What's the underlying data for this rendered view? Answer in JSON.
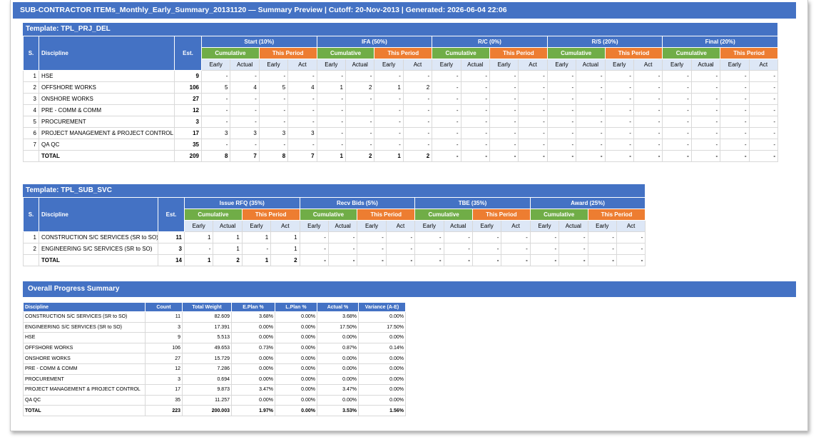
{
  "title": "SUB-CONTRACTOR ITEMs_Monthly_Early_Summary_20131120 — Summary Preview | Cutoff: 20-Nov-2013 | Generated: 2026-06-04 22:06",
  "common": {
    "s_label": "S.",
    "discipline_label": "Discipline",
    "est_label": "Est.",
    "cumulative_label": "Cumulative",
    "this_period_label": "This Period",
    "sub_headers": [
      "Early",
      "Actual",
      "Early",
      "Act"
    ],
    "total_label": "TOTAL"
  },
  "templates": [
    {
      "title": "Template: TPL_PRJ_DEL",
      "milestones": [
        "Start (10%)",
        "IFA (50%)",
        "R/C (0%)",
        "R/S (20%)",
        "Final (20%)"
      ],
      "rows": [
        {
          "s": "1",
          "discipline": "HSE",
          "est": "9",
          "values": [
            "-",
            "-",
            "-",
            "-",
            "-",
            "-",
            "-",
            "-",
            "-",
            "-",
            "-",
            "-",
            "-",
            "-",
            "-",
            "-",
            "-",
            "-",
            "-",
            "-"
          ]
        },
        {
          "s": "2",
          "discipline": "OFFSHORE WORKS",
          "est": "106",
          "values": [
            "5",
            "4",
            "5",
            "4",
            "1",
            "2",
            "1",
            "2",
            "-",
            "-",
            "-",
            "-",
            "-",
            "-",
            "-",
            "-",
            "-",
            "-",
            "-",
            "-"
          ]
        },
        {
          "s": "3",
          "discipline": "ONSHORE WORKS",
          "est": "27",
          "values": [
            "-",
            "-",
            "-",
            "-",
            "-",
            "-",
            "-",
            "-",
            "-",
            "-",
            "-",
            "-",
            "-",
            "-",
            "-",
            "-",
            "-",
            "-",
            "-",
            "-"
          ]
        },
        {
          "s": "4",
          "discipline": "PRE - COMM & COMM",
          "est": "12",
          "values": [
            "-",
            "-",
            "-",
            "-",
            "-",
            "-",
            "-",
            "-",
            "-",
            "-",
            "-",
            "-",
            "-",
            "-",
            "-",
            "-",
            "-",
            "-",
            "-",
            "-"
          ]
        },
        {
          "s": "5",
          "discipline": "PROCUREMENT",
          "est": "3",
          "values": [
            "-",
            "-",
            "-",
            "-",
            "-",
            "-",
            "-",
            "-",
            "-",
            "-",
            "-",
            "-",
            "-",
            "-",
            "-",
            "-",
            "-",
            "-",
            "-",
            "-"
          ]
        },
        {
          "s": "6",
          "discipline": "PROJECT MANAGEMENT & PROJECT CONTROL",
          "est": "17",
          "values": [
            "3",
            "3",
            "3",
            "3",
            "-",
            "-",
            "-",
            "-",
            "-",
            "-",
            "-",
            "-",
            "-",
            "-",
            "-",
            "-",
            "-",
            "-",
            "-",
            "-"
          ]
        },
        {
          "s": "7",
          "discipline": "QA QC",
          "est": "35",
          "values": [
            "-",
            "-",
            "-",
            "-",
            "-",
            "-",
            "-",
            "-",
            "-",
            "-",
            "-",
            "-",
            "-",
            "-",
            "-",
            "-",
            "-",
            "-",
            "-",
            "-"
          ]
        }
      ],
      "total": {
        "est": "209",
        "values": [
          "8",
          "7",
          "8",
          "7",
          "1",
          "2",
          "1",
          "2",
          "-",
          "-",
          "-",
          "-",
          "-",
          "-",
          "-",
          "-",
          "-",
          "-",
          "-",
          "-"
        ]
      }
    },
    {
      "title": "Template: TPL_SUB_SVC",
      "milestones": [
        "Issue RFQ (35%)",
        "Recv Bids (5%)",
        "TBE (35%)",
        "Award (25%)"
      ],
      "rows": [
        {
          "s": "1",
          "discipline": "CONSTRUCTION S/C SERVICES (SR to SO)",
          "est": "11",
          "values": [
            "1",
            "1",
            "1",
            "1",
            "-",
            "-",
            "-",
            "-",
            "-",
            "-",
            "-",
            "-",
            "-",
            "-",
            "-",
            "-"
          ]
        },
        {
          "s": "2",
          "discipline": "ENGINEERING S/C SERVICES (SR to SO)",
          "est": "3",
          "values": [
            "-",
            "1",
            "-",
            "1",
            "-",
            "-",
            "-",
            "-",
            "-",
            "-",
            "-",
            "-",
            "-",
            "-",
            "-",
            "-"
          ]
        }
      ],
      "total": {
        "est": "14",
        "values": [
          "1",
          "2",
          "1",
          "2",
          "-",
          "-",
          "-",
          "-",
          "-",
          "-",
          "-",
          "-",
          "-",
          "-",
          "-",
          "-"
        ]
      }
    }
  ],
  "summary": {
    "title": "Overall Progress Summary",
    "headers": [
      "Discipline",
      "Count",
      "Total Weight",
      "E.Plan %",
      "L.Plan %",
      "Actual %",
      "Variance (A-E)"
    ],
    "rows": [
      [
        "CONSTRUCTION S/C SERVICES (SR to SO)",
        "11",
        "82.609",
        "3.68%",
        "0.00%",
        "3.68%",
        "0.00%"
      ],
      [
        "ENGINEERING S/C SERVICES (SR to SO)",
        "3",
        "17.391",
        "0.00%",
        "0.00%",
        "17.50%",
        "17.50%"
      ],
      [
        "HSE",
        "9",
        "5.513",
        "0.00%",
        "0.00%",
        "0.00%",
        "0.00%"
      ],
      [
        "OFFSHORE WORKS",
        "106",
        "49.653",
        "0.73%",
        "0.00%",
        "0.87%",
        "0.14%"
      ],
      [
        "ONSHORE WORKS",
        "27",
        "15.729",
        "0.00%",
        "0.00%",
        "0.00%",
        "0.00%"
      ],
      [
        "PRE - COMM & COMM",
        "12",
        "7.286",
        "0.00%",
        "0.00%",
        "0.00%",
        "0.00%"
      ],
      [
        "PROCUREMENT",
        "3",
        "0.694",
        "0.00%",
        "0.00%",
        "0.00%",
        "0.00%"
      ],
      [
        "PROJECT MANAGEMENT & PROJECT CONTROL",
        "17",
        "9.873",
        "3.47%",
        "0.00%",
        "3.47%",
        "0.00%"
      ],
      [
        "QA QC",
        "35",
        "11.257",
        "0.00%",
        "0.00%",
        "0.00%",
        "0.00%"
      ]
    ],
    "total": [
      "TOTAL",
      "223",
      "200.003",
      "1.97%",
      "0.00%",
      "3.53%",
      "1.56%"
    ]
  }
}
